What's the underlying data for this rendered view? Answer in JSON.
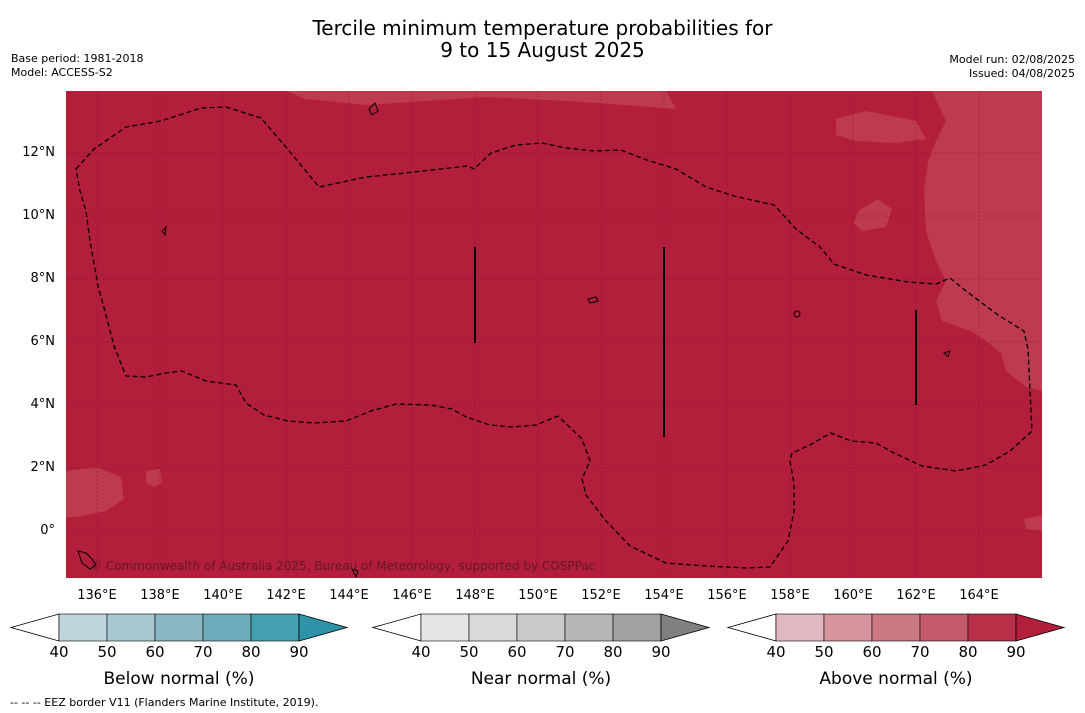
{
  "header": {
    "title_line1": "Tercile minimum temperature probabilities for",
    "title_line2": "9 to 15 August 2025",
    "base_period": "Base period: 1981-2018",
    "model": "Model: ACCESS-S2",
    "model_run": "Model run: 02/08/2025",
    "issued": "Issued: 04/08/2025"
  },
  "map": {
    "lat_labels": [
      "12°N",
      "10°N",
      "8°N",
      "6°N",
      "4°N",
      "2°N",
      "0°"
    ],
    "lon_labels": [
      "136°E",
      "138°E",
      "140°E",
      "142°E",
      "144°E",
      "146°E",
      "148°E",
      "150°E",
      "152°E",
      "154°E",
      "156°E",
      "158°E",
      "160°E",
      "162°E",
      "164°E"
    ],
    "copyright": "© Commonwealth of Australia 2025, Bureau of Meteorology, supported by COSPPac",
    "dominant_category": "Above normal",
    "dominant_color": "#b31e3b",
    "secondary_color": "#bd3a4f",
    "border_color": "#000000"
  },
  "colorbars": [
    {
      "title": "Below normal (%)",
      "ticks": [
        "40",
        "50",
        "60",
        "70",
        "80",
        "90"
      ],
      "colors": [
        "#ffffff",
        "#bdd5dc",
        "#a7c8d0",
        "#89b7c3",
        "#6cacbb",
        "#45a0b2",
        "#2e93a8"
      ]
    },
    {
      "title": "Near normal (%)",
      "ticks": [
        "40",
        "50",
        "60",
        "70",
        "80",
        "90"
      ],
      "colors": [
        "#ffffff",
        "#e6e6e6",
        "#d9d9d9",
        "#cacaca",
        "#b6b6b6",
        "#a1a1a1",
        "#808080"
      ]
    },
    {
      "title": "Above normal (%)",
      "ticks": [
        "40",
        "50",
        "60",
        "70",
        "80",
        "90"
      ],
      "colors": [
        "#ffffff",
        "#e0b8bf",
        "#d6959e",
        "#cc7883",
        "#c25a69",
        "#b83048",
        "#b31e3b"
      ]
    }
  ],
  "footer": {
    "legend_line": "--  --  -- EEZ border V11 (Flanders Marine Institute, 2019)."
  }
}
